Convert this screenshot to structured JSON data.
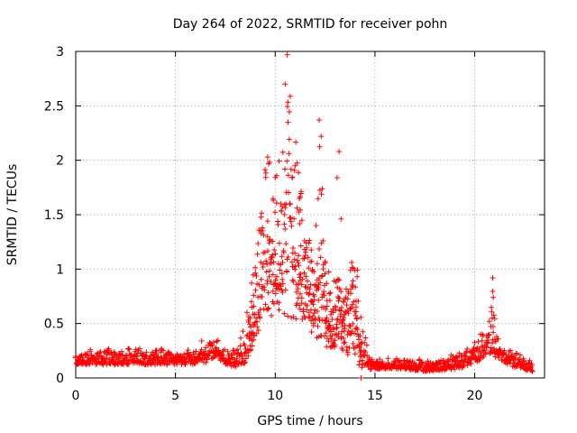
{
  "chart_data": {
    "type": "scatter",
    "title": "Day 264 of 2022, SRMTID for receiver pohn",
    "xlabel": "GPS time / hours",
    "ylabel": "SRMTID / TECUs",
    "xlim": [
      0,
      23.5
    ],
    "ylim": [
      0,
      3
    ],
    "xticks": [
      0,
      5,
      10,
      15,
      20
    ],
    "yticks": [
      0,
      0.5,
      1,
      1.5,
      2,
      2.5,
      3
    ],
    "xtick_labels": [
      "0",
      "5",
      "10",
      "15",
      "20"
    ],
    "ytick_labels": [
      "0",
      "0.5",
      "1",
      "1.5",
      "2",
      "2.5",
      "3"
    ],
    "grid": true,
    "marker": "+",
    "color": "#ff0000",
    "series": [
      {
        "name": "SRMTID",
        "envelope_x": [
          0,
          1,
          2,
          3,
          4,
          5,
          6,
          6.6,
          7.0,
          7.5,
          8.0,
          8.5,
          8.9,
          9.2,
          9.5,
          9.8,
          10.1,
          10.4,
          10.7,
          11.0,
          11.3,
          11.6,
          11.9,
          12.2,
          12.5,
          12.8,
          13.1,
          13.4,
          13.7,
          14.0,
          14.3,
          14.5,
          14.8,
          15.5,
          16.5,
          17.5,
          18.5,
          19.2,
          19.7,
          20.2,
          20.6,
          20.9,
          21.2,
          21.6,
          22.0,
          22.5,
          22.9
        ],
        "envelope_low": [
          0.12,
          0.12,
          0.12,
          0.12,
          0.12,
          0.12,
          0.12,
          0.14,
          0.2,
          0.12,
          0.1,
          0.14,
          0.3,
          0.45,
          0.6,
          0.55,
          0.6,
          0.6,
          0.55,
          0.5,
          0.55,
          0.45,
          0.4,
          0.35,
          0.3,
          0.25,
          0.25,
          0.25,
          0.2,
          0.15,
          0.1,
          0.08,
          0.08,
          0.08,
          0.08,
          0.06,
          0.07,
          0.08,
          0.12,
          0.15,
          0.22,
          0.2,
          0.18,
          0.12,
          0.1,
          0.08,
          0.05
        ],
        "envelope_high": [
          0.26,
          0.28,
          0.3,
          0.29,
          0.29,
          0.29,
          0.27,
          0.42,
          0.38,
          0.28,
          0.27,
          0.5,
          1.0,
          1.55,
          2.1,
          2.0,
          1.9,
          2.55,
          2.9,
          2.25,
          1.8,
          1.45,
          1.1,
          2.3,
          1.2,
          0.95,
          0.95,
          0.8,
          1.1,
          1.15,
          0.7,
          0.45,
          0.2,
          0.2,
          0.18,
          0.18,
          0.2,
          0.25,
          0.3,
          0.4,
          0.55,
          0.85,
          0.4,
          0.28,
          0.25,
          0.22,
          0.18
        ],
        "notable_points": [
          {
            "x": 10.6,
            "y": 2.97
          },
          {
            "x": 10.5,
            "y": 2.7
          },
          {
            "x": 12.2,
            "y": 2.37
          },
          {
            "x": 12.3,
            "y": 2.22
          },
          {
            "x": 13.2,
            "y": 2.08
          },
          {
            "x": 13.1,
            "y": 1.84
          },
          {
            "x": 13.3,
            "y": 1.46
          },
          {
            "x": 14.3,
            "y": 0.0
          },
          {
            "x": 20.9,
            "y": 0.92
          }
        ]
      }
    ]
  }
}
